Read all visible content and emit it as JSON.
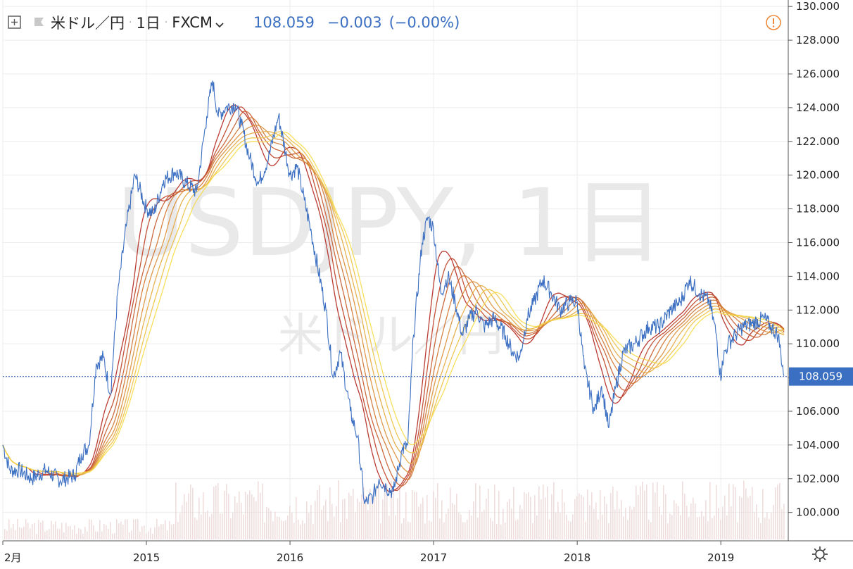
{
  "header": {
    "symbol_name": "米ドル／円",
    "interval": "1日",
    "source": "FXCM",
    "last_price": "108.059",
    "change": "−0.003",
    "change_pct": "(−0.00%)"
  },
  "watermark": {
    "main": "USDJPY, 1日",
    "sub": "米ドル／円"
  },
  "colors": {
    "price_line": "#3b6fc2",
    "ribbon_dark": "#b3261e",
    "ribbon_light": "#f7dc4a",
    "volume": "#ecd6d6",
    "price_badge": "#3b6fc2",
    "warning": "#f08a3a",
    "grid": "#ececec"
  },
  "icons": {
    "add": "plus-square-icon",
    "flag": "flag-icon",
    "dropdown": "chevron-down-icon",
    "warning": "warning-icon",
    "settings": "gear-icon"
  },
  "chart_data": {
    "type": "line",
    "x_unit": "year",
    "xlim": [
      2014.0,
      2019.45
    ],
    "ylim": [
      98.4,
      130.3
    ],
    "y_ticks": [
      "130.000",
      "128.000",
      "126.000",
      "124.000",
      "122.000",
      "120.000",
      "118.000",
      "116.000",
      "114.000",
      "112.000",
      "110.000",
      "108.000",
      "106.000",
      "104.000",
      "102.000",
      "100.000"
    ],
    "y_tick_values": [
      130,
      128,
      126,
      124,
      122,
      120,
      118,
      116,
      114,
      112,
      110,
      108,
      106,
      104,
      102,
      100
    ],
    "x_ticks": [
      "2月",
      "2015",
      "2016",
      "2017",
      "2018",
      "2019"
    ],
    "x_tick_values": [
      2014.0,
      2015.0,
      2016.0,
      2017.0,
      2018.0,
      2019.0
    ],
    "last_price_label": "108.059",
    "last_price": 108.059,
    "grid": true,
    "series": [
      {
        "x": [
          2014.0,
          2014.05,
          2014.12,
          2014.2,
          2014.3,
          2014.4,
          2014.5,
          2014.55,
          2014.6,
          2014.65,
          2014.7,
          2014.75,
          2014.8,
          2014.86,
          2014.92,
          2015.0,
          2015.05,
          2015.12,
          2015.2,
          2015.28,
          2015.35,
          2015.42,
          2015.46,
          2015.5,
          2015.55,
          2015.62,
          2015.66,
          2015.72,
          2015.78,
          2015.85,
          2015.92,
          2016.0,
          2016.05,
          2016.1,
          2016.15,
          2016.25,
          2016.3,
          2016.35,
          2016.42,
          2016.47,
          2016.52,
          2016.58,
          2016.62,
          2016.67,
          2016.72,
          2016.78,
          2016.82,
          2016.86,
          2016.92,
          2016.96,
          2017.0,
          2017.05,
          2017.1,
          2017.15,
          2017.2,
          2017.25,
          2017.3,
          2017.35,
          2017.42,
          2017.5,
          2017.55,
          2017.6,
          2017.65,
          2017.7,
          2017.76,
          2017.82,
          2017.88,
          2017.95,
          2018.0,
          2018.05,
          2018.12,
          2018.17,
          2018.22,
          2018.27,
          2018.32,
          2018.4,
          2018.5,
          2018.57,
          2018.65,
          2018.72,
          2018.78,
          2018.85,
          2018.92,
          2018.97,
          2019.0,
          2019.01,
          2019.05,
          2019.1,
          2019.15,
          2019.22,
          2019.3,
          2019.35,
          2019.4,
          2019.44
        ],
        "values": [
          104.0,
          102.5,
          102.5,
          102.0,
          102.5,
          101.9,
          102.2,
          103.5,
          104.0,
          108.8,
          109.2,
          107.0,
          113.0,
          117.0,
          120.0,
          118.0,
          117.7,
          119.7,
          120.2,
          119.5,
          119.0,
          123.5,
          125.6,
          123.5,
          124.0,
          124.2,
          123.0,
          121.0,
          119.5,
          121.0,
          123.5,
          120.0,
          120.5,
          118.5,
          116.5,
          112.0,
          108.0,
          109.5,
          106.0,
          104.5,
          100.5,
          101.0,
          102.0,
          101.5,
          101.2,
          103.7,
          104.0,
          110.5,
          116.0,
          117.5,
          116.8,
          113.0,
          114.0,
          112.5,
          110.5,
          111.5,
          112.0,
          111.0,
          111.5,
          110.5,
          109.5,
          109.2,
          111.5,
          112.5,
          113.8,
          113.0,
          112.0,
          112.5,
          112.5,
          108.5,
          106.0,
          107.5,
          105.0,
          107.5,
          109.5,
          110.0,
          111.0,
          111.0,
          112.0,
          112.5,
          113.8,
          113.0,
          112.5,
          110.5,
          107.8,
          109.0,
          110.0,
          110.5,
          111.0,
          111.2,
          111.5,
          111.0,
          110.5,
          108.1
        ]
      }
    ]
  }
}
